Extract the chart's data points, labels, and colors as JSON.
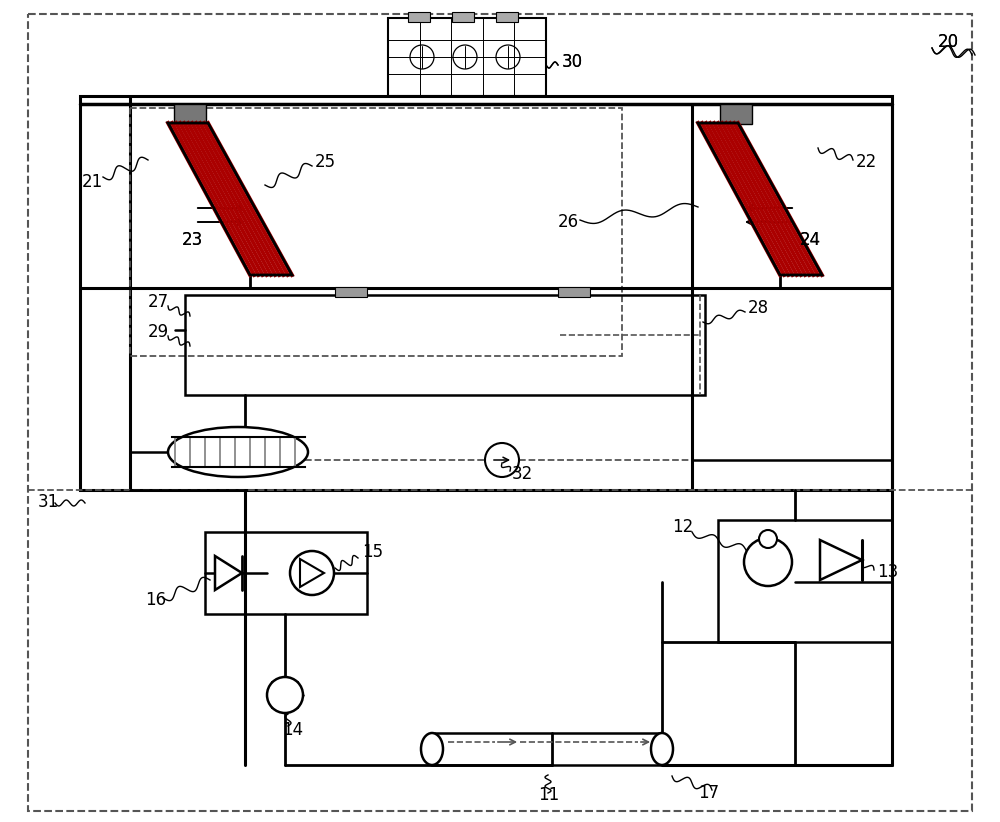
{
  "bg_color": "#ffffff",
  "lc": "#000000",
  "dc": "#555555",
  "rc": "#aa0000",
  "figsize": [
    10.0,
    8.22
  ],
  "dpi": 100
}
